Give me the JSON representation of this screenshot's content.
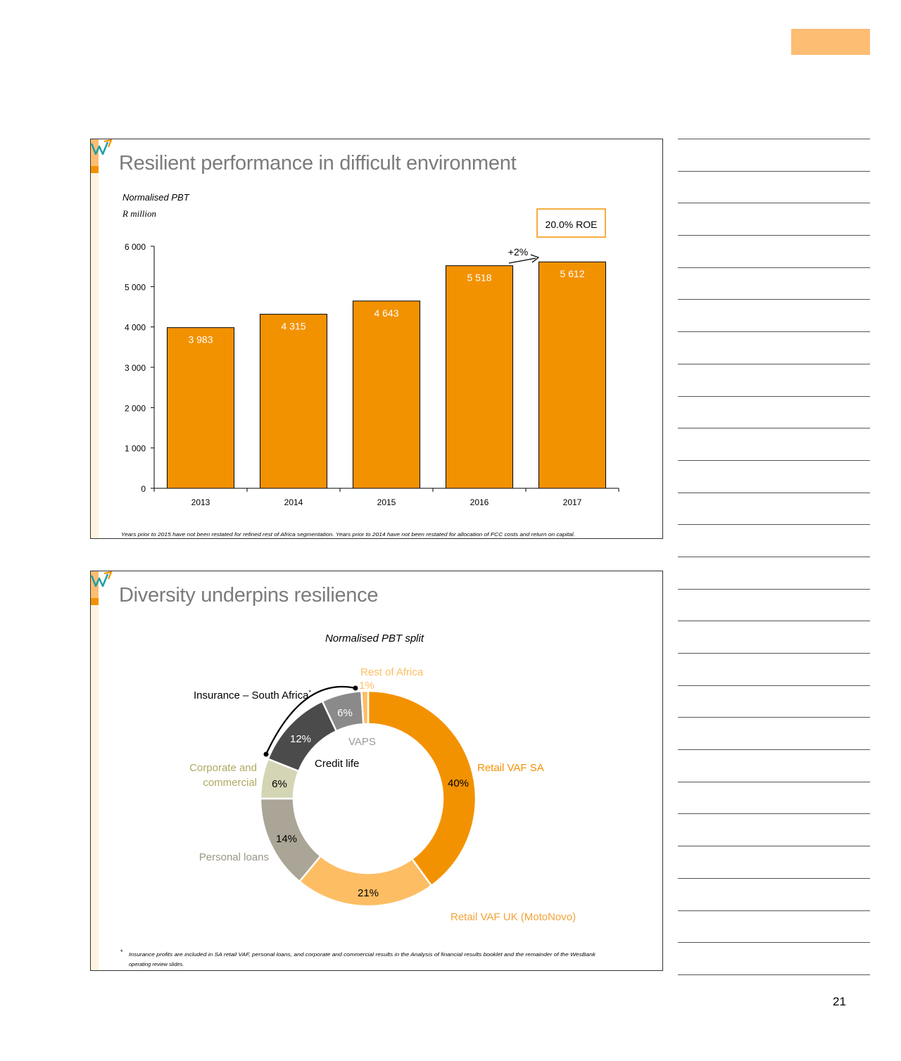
{
  "page": {
    "number": "21",
    "accent_color": "#fdbd73"
  },
  "slide1": {
    "title": "Resilient performance in difficult environment",
    "subtitle": "Normalised PBT",
    "unit": "R million",
    "roe_badge": "20.0% ROE",
    "growth_label": "+2%",
    "footnote": "Years prior to 2015 have not been restated for refined rest of Africa segmentation. Years prior to 2014 have not been restated for allocation of FCC costs and return on capital."
  },
  "slide2": {
    "title": "Diversity underpins resilience",
    "chart_title": "Normalised PBT split",
    "insurance_label": "Insurance – South Africa",
    "insurance_marker": "*",
    "footnote_marker": "*",
    "footnote_line1": "Insurance profits are included in SA retail VAF, personal loans, and corporate and commercial results in the Analysis of financial results booklet and the remainder of the WesBank",
    "footnote_line2": "operating review slides."
  },
  "chart_data": [
    {
      "type": "bar",
      "title": "Normalised PBT",
      "ylabel": "R million",
      "categories": [
        "2013",
        "2014",
        "2015",
        "2016",
        "2017"
      ],
      "values": [
        3983,
        4315,
        4643,
        5518,
        5612
      ],
      "value_labels": [
        "3 983",
        "4 315",
        "4 643",
        "5 518",
        "5 612"
      ],
      "ylim": [
        0,
        6000
      ],
      "yticks": [
        0,
        1000,
        2000,
        3000,
        4000,
        5000,
        6000
      ],
      "ytick_labels": [
        "0",
        "1 000",
        "2 000",
        "3 000",
        "4 000",
        "5 000",
        "6 000"
      ],
      "bar_color": "#f39200",
      "grid": false,
      "legend": "none"
    },
    {
      "type": "pie",
      "title": "Normalised PBT split",
      "donut": true,
      "slices": [
        {
          "label": "Retail VAF SA",
          "value": 40,
          "pct_label": "40%",
          "color": "#f39200",
          "label_color": "#f39200"
        },
        {
          "label": "Retail VAF UK (MotoNovo)",
          "value": 21,
          "pct_label": "21%",
          "color": "#fdbd63",
          "label_color": "#f3a33a"
        },
        {
          "label": "Personal loans",
          "value": 14,
          "pct_label": "14%",
          "color": "#aaa596",
          "label_color": "#9a9686"
        },
        {
          "label": "Corporate and commercial",
          "value": 6,
          "pct_label": "6%",
          "color": "#d4d5b4",
          "label_color": "#b0a860"
        },
        {
          "label": "Credit life",
          "value": 12,
          "pct_label": "12%",
          "color": "#4b4b4b",
          "label_color": "#000000"
        },
        {
          "label": "VAPS",
          "value": 6,
          "pct_label": "6%",
          "color": "#8a8a8a",
          "label_color": "#9b9b9b"
        },
        {
          "label": "Rest of Africa",
          "value": 1,
          "pct_label": "1%",
          "color": "#fdbd63",
          "label_color": "#fdbd63"
        }
      ]
    }
  ]
}
